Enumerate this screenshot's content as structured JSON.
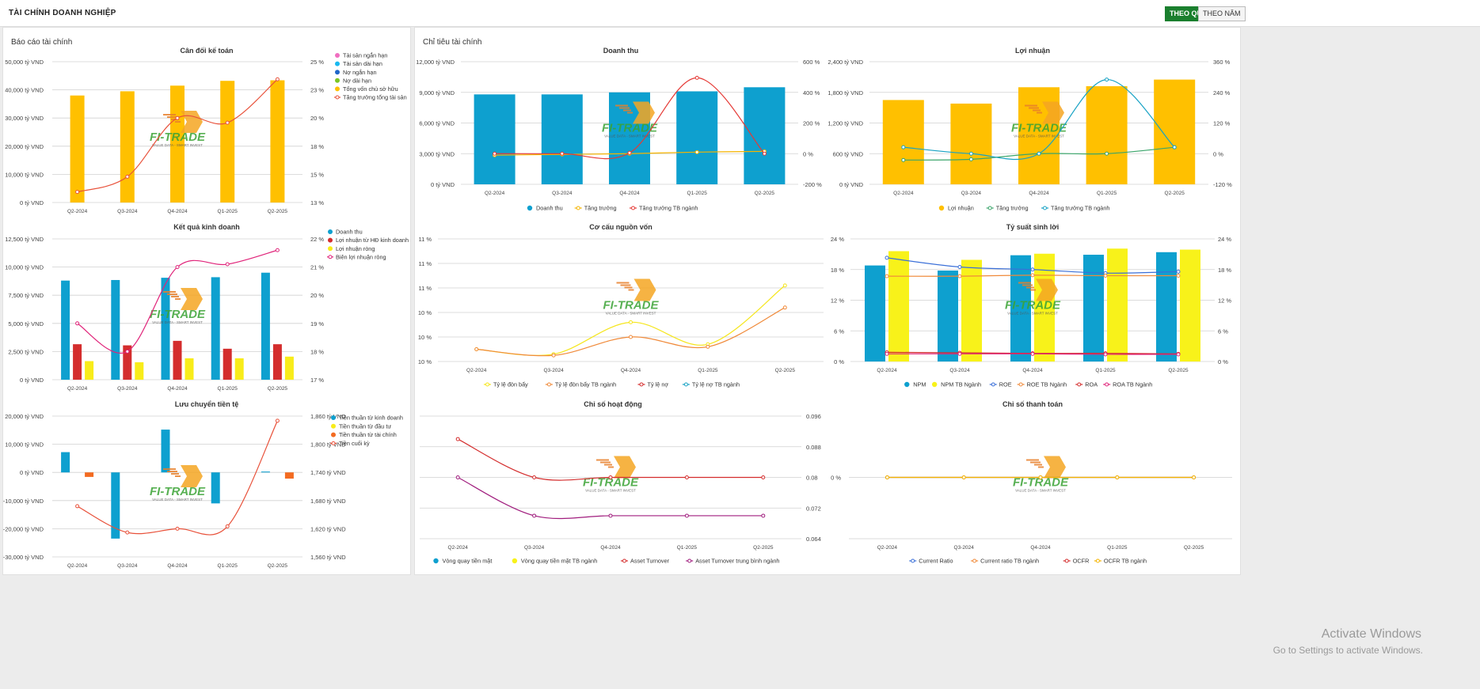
{
  "header": {
    "title": "TÀI CHÍNH DOANH NGHIỆP",
    "toggle_quarter": "THEO QUÝ",
    "toggle_year": "THEO NĂM"
  },
  "panels": {
    "left_title": "Báo cáo tài chính",
    "right_title": "Chỉ tiêu tài chính"
  },
  "watermark": {
    "line1": "Activate Windows",
    "line2": "Go to Settings to activate Windows."
  },
  "logo": {
    "brand": "FI-TRADE",
    "tagline": "VALUE DATA - SMART INVEST",
    "colors": [
      "#f5a623",
      "#3aa335"
    ]
  },
  "chart_data": [
    {
      "id": "bs",
      "type": "bar",
      "title": "Cân đối kế toán",
      "categories": [
        "Q2-2024",
        "Q3-2024",
        "Q4-2024",
        "Q1-2025",
        "Q2-2025"
      ],
      "ylim": [
        0,
        50000
      ],
      "yticks": [
        "0 tỷ VND",
        "10,000 tỷ VND",
        "20,000 tỷ VND",
        "30,000 tỷ VND",
        "40,000 tỷ VND",
        "50,000 tỷ VND"
      ],
      "y2lim": [
        13,
        25
      ],
      "y2ticks": [
        "13 %",
        "15 %",
        "18 %",
        "20 %",
        "23 %",
        "25 %"
      ],
      "bars": [
        {
          "name": "Tổng vốn chủ sở hữu",
          "color": "#ffc000",
          "values": [
            38000,
            39500,
            41500,
            43200,
            43400
          ]
        }
      ],
      "lines": [
        {
          "name": "Tăng trưởng tổng tài sản",
          "color": "#e8513a",
          "axis": "y2",
          "values": [
            13.9,
            15.2,
            20.2,
            19.8,
            23.5
          ]
        }
      ],
      "legend": [
        {
          "name": "Tài sản ngắn hạn",
          "color": "#f06ec0",
          "shape": "dot"
        },
        {
          "name": "Tài sản dài hạn",
          "color": "#19b9f0",
          "shape": "dot"
        },
        {
          "name": "Nợ ngắn hạn",
          "color": "#1e66c8",
          "shape": "dot"
        },
        {
          "name": "Nợ dài hạn",
          "color": "#7cc623",
          "shape": "dot"
        },
        {
          "name": "Tổng vốn chủ sở hữu",
          "color": "#ffc000",
          "shape": "dot"
        },
        {
          "name": "Tăng trưởng tổng tài sản",
          "color": "#e8513a",
          "shape": "line"
        }
      ]
    },
    {
      "id": "kq",
      "type": "bar",
      "title": "Kết quả kinh doanh",
      "categories": [
        "Q2-2024",
        "Q3-2024",
        "Q4-2024",
        "Q1-2025",
        "Q2-2025"
      ],
      "ylim": [
        0,
        12500
      ],
      "yticks": [
        "0 tỷ VND",
        "2,500 tỷ VND",
        "5,000 tỷ VND",
        "7,500 tỷ VND",
        "10,000 tỷ VND",
        "12,500 tỷ VND"
      ],
      "y2lim": [
        17,
        22
      ],
      "y2ticks": [
        "17 %",
        "18 %",
        "19 %",
        "20 %",
        "21 %",
        "22 %"
      ],
      "bars": [
        {
          "name": "Doanh thu",
          "color": "#0ea0cf",
          "values": [
            8800,
            8850,
            9050,
            9100,
            9500
          ]
        },
        {
          "name": "Lợi nhuận từ HĐ kinh doanh",
          "color": "#d42d2d",
          "values": [
            3150,
            3050,
            3450,
            2750,
            3150
          ]
        },
        {
          "name": "Lợi nhuận ròng",
          "color": "#f8ec1a",
          "values": [
            1650,
            1550,
            1900,
            1900,
            2050
          ]
        }
      ],
      "lines": [
        {
          "name": "Biên lợi nhuận ròng",
          "color": "#e0247a",
          "axis": "y2",
          "values": [
            19.0,
            18.0,
            21.0,
            21.1,
            21.6
          ]
        }
      ],
      "legend": [
        {
          "name": "Doanh thu",
          "color": "#0ea0cf",
          "shape": "dot"
        },
        {
          "name": "Lợi nhuận từ HĐ kinh doanh",
          "color": "#d42d2d",
          "shape": "dot"
        },
        {
          "name": "Lợi nhuận ròng",
          "color": "#f8ec1a",
          "shape": "dot"
        },
        {
          "name": "Biên lợi nhuận ròng",
          "color": "#e0247a",
          "shape": "line"
        }
      ]
    },
    {
      "id": "cf",
      "type": "bar",
      "title": "Lưu chuyển tiền tệ",
      "categories": [
        "Q2-2024",
        "Q3-2024",
        "Q4-2024",
        "Q1-2025",
        "Q2-2025"
      ],
      "ylim": [
        -30000,
        20000
      ],
      "yticks": [
        "-30,000 tỷ VND",
        "-20,000 tỷ VND",
        "-10,000 tỷ VND",
        "0 tỷ VND",
        "10,000 tỷ VND",
        "20,000 tỷ VND"
      ],
      "y2lim": [
        1560,
        1860
      ],
      "y2ticks": [
        "1,560 tỷ VND",
        "1,620 tỷ VND",
        "1,680 tỷ VND",
        "1,740 tỷ VND",
        "1,800 tỷ VND",
        "1,860 tỷ VND"
      ],
      "bars": [
        {
          "name": "Tiền thuần từ kinh doanh",
          "color": "#0ea0cf",
          "values": [
            7200,
            -23500,
            15200,
            -11000,
            300
          ]
        },
        {
          "name": "Tiền thuần từ đầu tư",
          "color": "#f8ec1a",
          "values": [
            0,
            0,
            0,
            0,
            0
          ]
        },
        {
          "name": "Tiền thuần từ tài chính",
          "color": "#f36b21",
          "values": [
            -1600,
            0,
            0,
            0,
            -2200
          ]
        }
      ],
      "lines": [
        {
          "name": "Tiền cuối kỳ",
          "color": "#e8513a",
          "axis": "y2",
          "values": [
            1668,
            1612,
            1620,
            1625,
            1850
          ]
        }
      ],
      "legend": [
        {
          "name": "Tiền thuần từ kinh doanh",
          "color": "#0ea0cf",
          "shape": "dot"
        },
        {
          "name": "Tiền thuần từ đầu tư",
          "color": "#f8ec1a",
          "shape": "dot"
        },
        {
          "name": "Tiền thuần từ tài chính",
          "color": "#f36b21",
          "shape": "dot"
        },
        {
          "name": "Tiền cuối kỳ",
          "color": "#e8513a",
          "shape": "line"
        }
      ]
    },
    {
      "id": "dt",
      "type": "bar",
      "title": "Doanh thu",
      "categories": [
        "Q2-2024",
        "Q3-2024",
        "Q4-2024",
        "Q1-2025",
        "Q2-2025"
      ],
      "ylim": [
        0,
        12000
      ],
      "yticks": [
        "0 tỷ VND",
        "3,000 tỷ VND",
        "6,000 tỷ VND",
        "9,000 tỷ VND",
        "12,000 tỷ VND"
      ],
      "y2lim": [
        -200,
        600
      ],
      "y2ticks": [
        "-200 %",
        "0 %",
        "200 %",
        "400 %",
        "600 %"
      ],
      "bars": [
        {
          "name": "Doanh thu",
          "color": "#0ea0cf",
          "values": [
            8800,
            8800,
            9000,
            9100,
            9500
          ]
        }
      ],
      "lines": [
        {
          "name": "Tăng trưởng",
          "color": "#f5b400",
          "axis": "y2",
          "values": [
            -10,
            -5,
            0,
            10,
            15
          ]
        },
        {
          "name": "Tăng trưởng TB ngành",
          "color": "#e53935",
          "axis": "y2",
          "values": [
            0,
            0,
            5,
            495,
            0
          ]
        }
      ],
      "legend": [
        {
          "name": "Doanh thu",
          "color": "#0ea0cf",
          "shape": "dot"
        },
        {
          "name": "Tăng trưởng",
          "color": "#f5b400",
          "shape": "line"
        },
        {
          "name": "Tăng trưởng TB ngành",
          "color": "#e53935",
          "shape": "line"
        }
      ]
    },
    {
      "id": "ln",
      "type": "bar",
      "title": "Lợi nhuận",
      "categories": [
        "Q2-2024",
        "Q3-2024",
        "Q4-2024",
        "Q1-2025",
        "Q2-2025"
      ],
      "ylim": [
        0,
        2400
      ],
      "yticks": [
        "0 tỷ VND",
        "600 tỷ VND",
        "1,200 tỷ VND",
        "1,800 tỷ VND",
        "2,400 tỷ VND"
      ],
      "y2lim": [
        -120,
        360
      ],
      "y2ticks": [
        "-120 %",
        "0 %",
        "120 %",
        "240 %",
        "360 %"
      ],
      "bars": [
        {
          "name": "Lợi nhuận",
          "color": "#ffc000",
          "values": [
            1650,
            1580,
            1900,
            1920,
            2050
          ]
        }
      ],
      "lines": [
        {
          "name": "Tăng trưởng",
          "color": "#3aa56a",
          "axis": "y2",
          "values": [
            -25,
            -22,
            0,
            0,
            25
          ]
        },
        {
          "name": "Tăng trưởng TB ngành",
          "color": "#17a2c4",
          "axis": "y2",
          "values": [
            25,
            0,
            0,
            290,
            25
          ]
        }
      ],
      "legend": [
        {
          "name": "Lợi nhuận",
          "color": "#ffc000",
          "shape": "dot"
        },
        {
          "name": "Tăng trưởng",
          "color": "#3aa56a",
          "shape": "line"
        },
        {
          "name": "Tăng trưởng TB ngành",
          "color": "#17a2c4",
          "shape": "line"
        }
      ]
    },
    {
      "id": "ccnv",
      "type": "line",
      "title": "Cơ cấu nguồn vốn",
      "categories": [
        "Q2-2024",
        "Q3-2024",
        "Q4-2024",
        "Q1-2025",
        "Q2-2025"
      ],
      "ylim": [
        10,
        11
      ],
      "yticks": [
        "10 %",
        "10 %",
        "10 %",
        "11 %",
        "11 %",
        "11 %"
      ],
      "bars": [],
      "lines": [
        {
          "name": "Tỷ lệ đòn bẩy",
          "color": "#f5e61c",
          "axis": "y",
          "values": [
            10.1,
            10.06,
            10.32,
            10.14,
            10.62
          ]
        },
        {
          "name": "Tỷ lệ đòn bẩy TB ngành",
          "color": "#f08a3a",
          "axis": "y",
          "values": [
            10.1,
            10.05,
            10.2,
            10.12,
            10.44
          ]
        }
      ],
      "legend": [
        {
          "name": "Tỷ lệ đòn bẩy",
          "color": "#f5e61c",
          "shape": "line"
        },
        {
          "name": "Tỷ lệ đòn bẩy TB ngành",
          "color": "#f08a3a",
          "shape": "line"
        },
        {
          "name": "Tỷ lệ nợ",
          "color": "#d42d2d",
          "shape": "line"
        },
        {
          "name": "Tỷ lệ nợ TB ngành",
          "color": "#17a2c4",
          "shape": "line"
        }
      ]
    },
    {
      "id": "tssl",
      "type": "bar",
      "title": "Tỷ suất sinh lời",
      "categories": [
        "Q2-2024",
        "Q3-2024",
        "Q4-2024",
        "Q1-2025",
        "Q2-2025"
      ],
      "ylim": [
        0,
        24
      ],
      "yticks": [
        "0 %",
        "6 %",
        "12 %",
        "18 %",
        "24 %"
      ],
      "y2lim": [
        0,
        24
      ],
      "y2ticks": [
        "0 %",
        "6 %",
        "12 %",
        "18 %",
        "24 %"
      ],
      "bars": [
        {
          "name": "NPM",
          "color": "#0ea0cf",
          "values": [
            18.8,
            17.8,
            20.8,
            20.9,
            21.4
          ]
        },
        {
          "name": "NPM TB Ngành",
          "color": "#f8f21a",
          "values": [
            21.6,
            19.9,
            21.1,
            22.1,
            21.9
          ]
        }
      ],
      "lines": [
        {
          "name": "ROE",
          "color": "#3a6fd8",
          "axis": "y",
          "values": [
            20.3,
            18.5,
            18.0,
            17.3,
            17.6
          ]
        },
        {
          "name": "ROE TB Ngành",
          "color": "#f08a3a",
          "axis": "y",
          "values": [
            16.7,
            16.7,
            16.9,
            16.8,
            16.8
          ]
        },
        {
          "name": "ROA",
          "color": "#d42d2d",
          "axis": "y",
          "values": [
            1.8,
            1.7,
            1.6,
            1.6,
            1.5
          ]
        },
        {
          "name": "ROA TB Ngành",
          "color": "#e0247a",
          "axis": "y",
          "values": [
            1.5,
            1.5,
            1.5,
            1.4,
            1.4
          ]
        }
      ],
      "legend": [
        {
          "name": "NPM",
          "color": "#0ea0cf",
          "shape": "dot"
        },
        {
          "name": "NPM TB Ngành",
          "color": "#f8f21a",
          "shape": "dot"
        },
        {
          "name": "ROE",
          "color": "#3a6fd8",
          "shape": "line"
        },
        {
          "name": "ROE TB Ngành",
          "color": "#f08a3a",
          "shape": "line"
        },
        {
          "name": "ROA",
          "color": "#d42d2d",
          "shape": "line"
        },
        {
          "name": "ROA TB Ngành",
          "color": "#e0247a",
          "shape": "line"
        }
      ]
    },
    {
      "id": "hd",
      "type": "line",
      "title": "Chỉ số hoạt động",
      "categories": [
        "Q2-2024",
        "Q3-2024",
        "Q4-2024",
        "Q1-2025",
        "Q2-2025"
      ],
      "ylim": [
        0.064,
        0.096
      ],
      "yticks": [],
      "y2lim": [
        0.064,
        0.096
      ],
      "y2ticks": [
        "0.064",
        "0.072",
        "0.08",
        "0.088",
        "0.096"
      ],
      "bars": [],
      "lines": [
        {
          "name": "Asset Turnover",
          "color": "#d42d2d",
          "axis": "y2",
          "values": [
            0.09,
            0.08,
            0.08,
            0.08,
            0.08
          ]
        },
        {
          "name": "Asset Turnover trung bình ngành",
          "color": "#a01c7d",
          "axis": "y2",
          "values": [
            0.08,
            0.07,
            0.07,
            0.07,
            0.07
          ]
        }
      ],
      "legend": [
        {
          "name": "Vòng quay tiền mặt",
          "color": "#0ea0cf",
          "shape": "dot"
        },
        {
          "name": "Vòng quay tiền mặt TB ngành",
          "color": "#f8f21a",
          "shape": "dot"
        },
        {
          "name": "Asset Turnover",
          "color": "#d42d2d",
          "shape": "line"
        },
        {
          "name": "Asset Turnover trung bình ngành",
          "color": "#a01c7d",
          "shape": "line"
        }
      ]
    },
    {
      "id": "tt",
      "type": "line",
      "title": "Chỉ số thanh toán",
      "categories": [
        "Q2-2024",
        "Q3-2024",
        "Q4-2024",
        "Q1-2025",
        "Q2-2025"
      ],
      "ylim": [
        -1,
        1
      ],
      "yticks": [
        "",
        "0 %",
        ""
      ],
      "bars": [],
      "lines": [
        {
          "name": "Current Ratio",
          "color": "#3a6fd8",
          "axis": "y",
          "values": [
            0,
            0,
            0,
            0,
            0
          ]
        },
        {
          "name": "Current ratio TB ngành",
          "color": "#f08a3a",
          "axis": "y",
          "values": [
            0,
            0,
            0,
            0,
            0
          ]
        },
        {
          "name": "OCFR TB ngành",
          "color": "#f5b400",
          "axis": "y",
          "values": [
            0,
            0,
            0,
            0,
            0
          ]
        }
      ],
      "legend": [
        {
          "name": "Current Ratio",
          "color": "#3a6fd8",
          "shape": "line"
        },
        {
          "name": "Current ratio TB ngành",
          "color": "#f08a3a",
          "shape": "line"
        },
        {
          "name": "OCFR",
          "color": "#d42d2d",
          "shape": "line"
        },
        {
          "name": "OCFR TB ngành",
          "color": "#f5b400",
          "shape": "line"
        }
      ]
    }
  ]
}
